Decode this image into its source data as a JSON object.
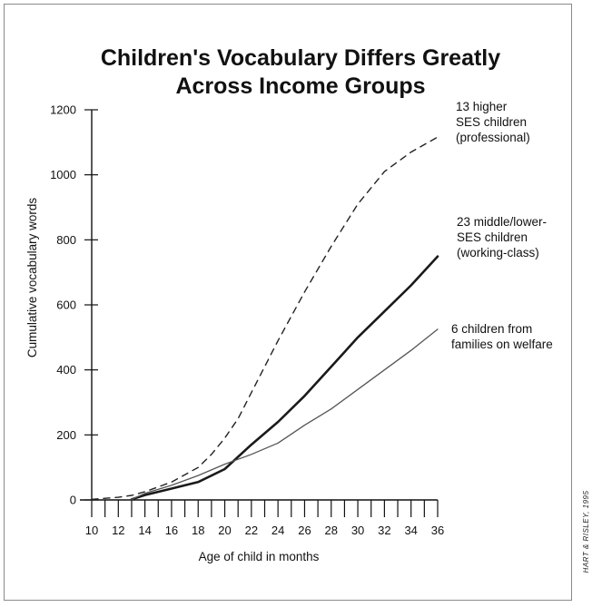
{
  "chart_data": {
    "type": "line",
    "title": [
      "Children's Vocabulary Differs Greatly",
      "Across Income Groups"
    ],
    "xlabel": "Age of child in months",
    "ylabel": "Cumulative vocabulary words",
    "xlim": [
      10,
      36
    ],
    "ylim": [
      0,
      1200
    ],
    "x_ticks": [
      10,
      11,
      12,
      13,
      14,
      15,
      16,
      17,
      18,
      19,
      20,
      21,
      22,
      23,
      24,
      25,
      26,
      27,
      28,
      29,
      30,
      31,
      32,
      33,
      34,
      35,
      36
    ],
    "x_tick_labels": [
      "10",
      "12",
      "14",
      "16",
      "18",
      "20",
      "22",
      "24",
      "26",
      "28",
      "30",
      "32",
      "34",
      "36"
    ],
    "x_tick_label_values": [
      10,
      12,
      14,
      16,
      18,
      20,
      22,
      24,
      26,
      28,
      30,
      32,
      34,
      36
    ],
    "y_ticks": [
      0,
      200,
      400,
      600,
      800,
      1000,
      1200
    ],
    "y_tick_labels": [
      "0",
      "200",
      "400",
      "600",
      "800",
      "1000",
      "1200"
    ],
    "series": [
      {
        "style": "dashed",
        "color": "#222222",
        "annotation": [
          "13 higher",
          "SES children",
          "(professional)"
        ],
        "x": [
          10,
          12,
          13,
          14,
          16,
          18,
          19,
          20,
          21,
          22,
          24,
          26,
          28,
          30,
          32,
          34,
          36
        ],
        "values": [
          2,
          8,
          14,
          25,
          55,
          100,
          140,
          190,
          250,
          330,
          490,
          640,
          780,
          910,
          1010,
          1070,
          1116
        ]
      },
      {
        "style": "solid-bold",
        "color": "#1a1a1a",
        "annotation": [
          "23 middle/lower-",
          "SES children",
          "(working-class)"
        ],
        "x": [
          13,
          14,
          16,
          18,
          20,
          22,
          24,
          26,
          28,
          30,
          32,
          34,
          36
        ],
        "values": [
          2,
          15,
          35,
          55,
          95,
          170,
          240,
          320,
          410,
          500,
          580,
          660,
          749
        ]
      },
      {
        "style": "solid-thin",
        "color": "#555555",
        "annotation": [
          "6 children from",
          "families on welfare"
        ],
        "x": [
          13,
          14,
          16,
          18,
          20,
          22,
          24,
          26,
          28,
          30,
          32,
          34,
          36
        ],
        "values": [
          2,
          20,
          45,
          75,
          110,
          140,
          175,
          230,
          280,
          340,
          400,
          460,
          525
        ]
      }
    ],
    "grid": false,
    "legend": "none"
  },
  "credit": "HART & RISLEY, 1995"
}
